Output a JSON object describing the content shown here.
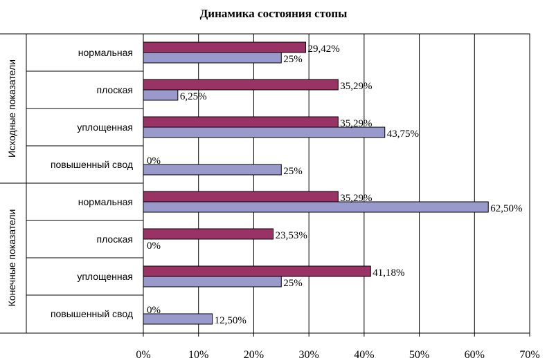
{
  "chart_data": {
    "type": "bar",
    "orientation": "horizontal",
    "title": "Динамика состояния стопы",
    "groups": [
      {
        "label": "Исходные показатели",
        "categories": [
          "нормальная",
          "плоская",
          "уплощенная",
          "повышенный свод"
        ]
      },
      {
        "label": "Конечные показатели",
        "categories": [
          "нормальная",
          "плоская",
          "уплощенная",
          "повышенный свод"
        ]
      }
    ],
    "series": [
      {
        "color": "#993366",
        "values": [
          29.42,
          35.29,
          35.29,
          0,
          35.29,
          23.53,
          41.18,
          0
        ],
        "labels": [
          "29,42%",
          "35,29%",
          "35,29%",
          "0%",
          "35,29%",
          "23,53%",
          "41,18%",
          "0%"
        ]
      },
      {
        "color": "#9999CC",
        "values": [
          25,
          6.25,
          43.75,
          25,
          62.5,
          0,
          25,
          12.5
        ],
        "labels": [
          "25%",
          "6,25%",
          "43,75%",
          "25%",
          "62,50%",
          "0%",
          "25%",
          "12,50%"
        ]
      }
    ],
    "xlim": [
      0,
      70
    ],
    "xticks": [
      0,
      10,
      20,
      30,
      40,
      50,
      60,
      70
    ],
    "xtick_labels": [
      "0%",
      "10%",
      "20%",
      "30%",
      "40%",
      "50%",
      "60%",
      "70%"
    ],
    "xlabel": "",
    "ylabel": "",
    "grid": "vertical",
    "legend": "none"
  }
}
